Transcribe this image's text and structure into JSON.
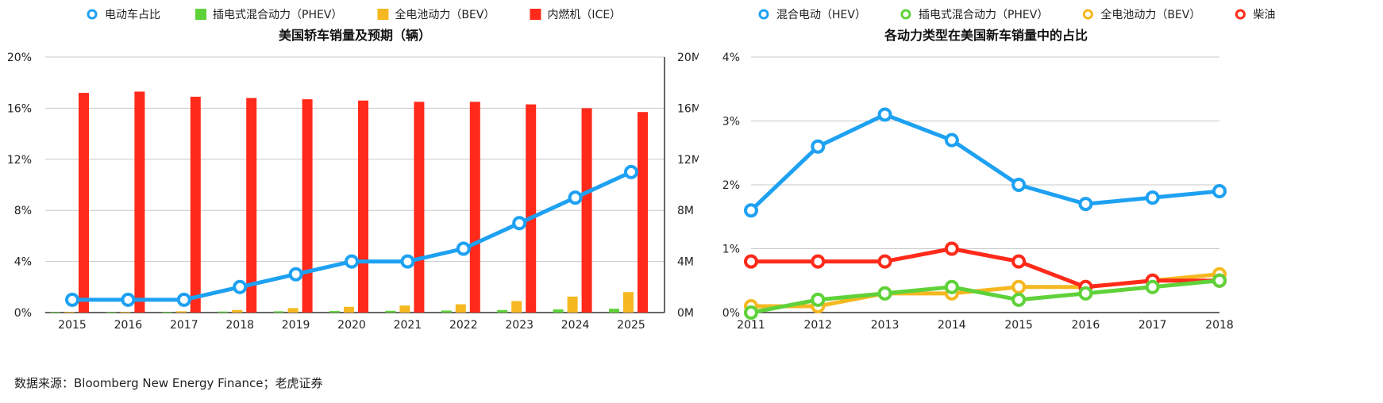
{
  "source_text": "数据来源：Bloomberg New Energy Finance；老虎证券",
  "chart_data": [
    {
      "type": "bar+line",
      "title": "美国轿车销量及预期（辆）",
      "legend_position": "top",
      "grid": true,
      "categories": [
        "2015",
        "2016",
        "2017",
        "2018",
        "2019",
        "2020",
        "2021",
        "2022",
        "2023",
        "2024",
        "2025"
      ],
      "left_axis": {
        "ticks": [
          "0%",
          "4%",
          "8%",
          "12%",
          "16%",
          "20%"
        ],
        "range": [
          0,
          20
        ],
        "unit": "%"
      },
      "right_axis": {
        "ticks": [
          "0M",
          "4M",
          "8M",
          "12M",
          "16M",
          "20M"
        ],
        "range": [
          0,
          20
        ],
        "unit": "M"
      },
      "series": [
        {
          "name": "电动车占比",
          "kind": "line",
          "axis": "left",
          "color": "#1ea1f2",
          "values": [
            1,
            1,
            1,
            2,
            3,
            4,
            4,
            5,
            7,
            9,
            11
          ]
        },
        {
          "name": "插电式混合动力（PHEV）",
          "kind": "bar",
          "axis": "right",
          "color": "#5fd23a",
          "values": [
            0.05,
            0.05,
            0.06,
            0.08,
            0.1,
            0.12,
            0.14,
            0.16,
            0.2,
            0.25,
            0.3
          ]
        },
        {
          "name": "全电池动力（BEV）",
          "kind": "bar",
          "axis": "right",
          "color": "#f5b820",
          "values": [
            0.05,
            0.05,
            0.1,
            0.2,
            0.35,
            0.45,
            0.55,
            0.65,
            0.9,
            1.25,
            1.6
          ]
        },
        {
          "name": "内燃机（ICE）",
          "kind": "bar",
          "axis": "right",
          "color": "#ff2a1a",
          "values": [
            17.2,
            17.3,
            16.9,
            16.8,
            16.7,
            16.6,
            16.5,
            16.5,
            16.3,
            16.0,
            15.7
          ]
        }
      ]
    },
    {
      "type": "line",
      "title": "各动力类型在美国新车销量中的占比",
      "legend_position": "top",
      "grid": true,
      "categories": [
        "2011",
        "2012",
        "2013",
        "2014",
        "2015",
        "2016",
        "2017",
        "2018"
      ],
      "y_axis": {
        "ticks": [
          "0%",
          "1%",
          "2%",
          "3%",
          "4%"
        ],
        "range": [
          0,
          4
        ],
        "unit": "%"
      },
      "series": [
        {
          "name": "混合电动（HEV）",
          "color": "#1ea1f2",
          "values": [
            1.6,
            2.6,
            3.1,
            2.7,
            2.0,
            1.7,
            1.8,
            1.9
          ]
        },
        {
          "name": "插电式混合动力（PHEV）",
          "color": "#5fd23a",
          "values": [
            0.0,
            0.2,
            0.3,
            0.4,
            0.2,
            0.3,
            0.4,
            0.5
          ]
        },
        {
          "name": "全电池动力（BEV）",
          "color": "#f5b820",
          "values": [
            0.1,
            0.1,
            0.3,
            0.3,
            0.4,
            0.4,
            0.5,
            0.6
          ]
        },
        {
          "name": "柴油",
          "color": "#ff2a1a",
          "values": [
            0.8,
            0.8,
            0.8,
            1.0,
            0.8,
            0.4,
            0.5,
            0.5
          ]
        }
      ]
    }
  ]
}
